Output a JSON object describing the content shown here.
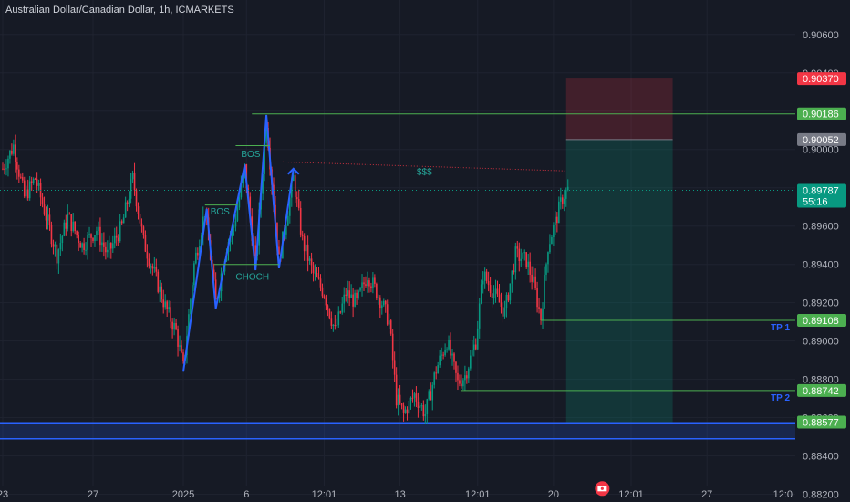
{
  "header": {
    "title": "Australian Dollar/Canadian Dollar, 1h, ICMARKETS"
  },
  "colors": {
    "background": "#161a25",
    "grid": "#1f2330",
    "up_candle": "#089981",
    "down_candle": "#f23645",
    "structure_line": "#2962ff",
    "level_line": "#4caf50",
    "stop_zone": "#f23645",
    "target_zone": "#089981",
    "axis_text": "#b2b5be",
    "liquidity_text": "#26a69a"
  },
  "chart_data": {
    "type": "candlestick",
    "symbol": "AUDCAD",
    "timeframe": "1h",
    "ylim": [
      0.8816,
      0.9078
    ],
    "y_ticks": [
      {
        "value": 0.906,
        "label": "0.90600"
      },
      {
        "value": 0.904,
        "label": "0.90400"
      },
      {
        "value": 0.902,
        "label": "0.90200"
      },
      {
        "value": 0.9,
        "label": "0.90000"
      },
      {
        "value": 0.898,
        "label": "0.89800"
      },
      {
        "value": 0.896,
        "label": "0.89600"
      },
      {
        "value": 0.894,
        "label": "0.89400"
      },
      {
        "value": 0.892,
        "label": "0.89200"
      },
      {
        "value": 0.89,
        "label": "0.89000"
      },
      {
        "value": 0.888,
        "label": "0.88800"
      },
      {
        "value": 0.886,
        "label": "0.88600"
      },
      {
        "value": 0.884,
        "label": "0.88400"
      },
      {
        "value": 0.882,
        "label": "0.88200"
      }
    ],
    "x_ticks": [
      {
        "bar": 0,
        "label": "23"
      },
      {
        "bar": 50,
        "label": "27"
      },
      {
        "bar": 100,
        "label": "2025"
      },
      {
        "bar": 135,
        "label": "6"
      },
      {
        "bar": 178,
        "label": "12:01"
      },
      {
        "bar": 220,
        "label": "13"
      },
      {
        "bar": 263,
        "label": "12:01"
      },
      {
        "bar": 305,
        "label": "20"
      },
      {
        "bar": 348,
        "label": "12:01"
      },
      {
        "bar": 390,
        "label": "27"
      },
      {
        "bar": 432,
        "label": "12:0"
      }
    ],
    "price_labels": [
      {
        "value": 0.9037,
        "label": "0.90370",
        "kind": "stop"
      },
      {
        "value": 0.90186,
        "label": "0.90186",
        "kind": "level"
      },
      {
        "value": 0.90052,
        "label": "0.90052",
        "kind": "entry"
      },
      {
        "value": 0.89787,
        "label": "0.89787",
        "kind": "current",
        "countdown": "55:16"
      },
      {
        "value": 0.89108,
        "label": "0.89108",
        "kind": "level"
      },
      {
        "value": 0.88742,
        "label": "0.88742",
        "kind": "level"
      },
      {
        "value": 0.88577,
        "label": "0.88577",
        "kind": "target"
      }
    ],
    "horizontal_levels": [
      {
        "value": 0.90186,
        "bar_start": 138
      },
      {
        "value": 0.89108,
        "bar_start": 298,
        "name": "TP 1"
      },
      {
        "value": 0.88742,
        "bar_start": 254,
        "name": "TP 2"
      }
    ],
    "support_band": {
      "top": 0.88573,
      "bottom": 0.8849
    },
    "position": {
      "side": "short",
      "bar_start": 312,
      "bar_end": 371,
      "stop": 0.9037,
      "entry": 0.90052,
      "target": 0.88577
    },
    "liquidity_line": {
      "bar_start": 155,
      "value_start": 0.89935,
      "bar_end": 312,
      "value_end": 0.89888,
      "label": "$$$"
    },
    "structure_path": [
      {
        "bar": 100,
        "value": 0.8884
      },
      {
        "bar": 113,
        "value": 0.8969
      },
      {
        "bar": 118,
        "value": 0.8917
      },
      {
        "bar": 134,
        "value": 0.8992
      },
      {
        "bar": 140,
        "value": 0.8937
      },
      {
        "bar": 146,
        "value": 0.9018
      },
      {
        "bar": 153,
        "value": 0.8938
      },
      {
        "bar": 161,
        "value": 0.899
      }
    ],
    "structure_arrow": {
      "bar": 161,
      "value": 0.899
    },
    "annotations": [
      {
        "text": "BOS",
        "bar": 115,
        "value": 0.8966,
        "line_from_bar": 112,
        "line_to_bar": 130,
        "line_value": 0.8971
      },
      {
        "text": "BOS",
        "bar": 132,
        "value": 0.8996,
        "line_from_bar": 129,
        "line_to_bar": 148,
        "line_value": 0.9002
      },
      {
        "text": "CHOCH",
        "bar": 129,
        "value": 0.8932,
        "line_from_bar": 117,
        "line_to_bar": 153,
        "line_value": 0.894
      }
    ],
    "ohlc_anchor_path": [
      {
        "bar": 0,
        "value": 0.899
      },
      {
        "bar": 6,
        "value": 0.9002
      },
      {
        "bar": 12,
        "value": 0.8975
      },
      {
        "bar": 18,
        "value": 0.8985
      },
      {
        "bar": 24,
        "value": 0.8965
      },
      {
        "bar": 30,
        "value": 0.8945
      },
      {
        "bar": 36,
        "value": 0.8965
      },
      {
        "bar": 44,
        "value": 0.895
      },
      {
        "bar": 52,
        "value": 0.8958
      },
      {
        "bar": 58,
        "value": 0.8945
      },
      {
        "bar": 66,
        "value": 0.896
      },
      {
        "bar": 72,
        "value": 0.8985
      },
      {
        "bar": 78,
        "value": 0.8952
      },
      {
        "bar": 84,
        "value": 0.8935
      },
      {
        "bar": 90,
        "value": 0.8918
      },
      {
        "bar": 96,
        "value": 0.8905
      },
      {
        "bar": 100,
        "value": 0.8886
      },
      {
        "bar": 106,
        "value": 0.894
      },
      {
        "bar": 112,
        "value": 0.8968
      },
      {
        "bar": 118,
        "value": 0.892
      },
      {
        "bar": 124,
        "value": 0.895
      },
      {
        "bar": 128,
        "value": 0.896
      },
      {
        "bar": 134,
        "value": 0.899
      },
      {
        "bar": 140,
        "value": 0.894
      },
      {
        "bar": 146,
        "value": 0.9015
      },
      {
        "bar": 153,
        "value": 0.8942
      },
      {
        "bar": 161,
        "value": 0.8985
      },
      {
        "bar": 166,
        "value": 0.8952
      },
      {
        "bar": 172,
        "value": 0.8935
      },
      {
        "bar": 178,
        "value": 0.8925
      },
      {
        "bar": 184,
        "value": 0.8905
      },
      {
        "bar": 190,
        "value": 0.8925
      },
      {
        "bar": 196,
        "value": 0.892
      },
      {
        "bar": 202,
        "value": 0.8935
      },
      {
        "bar": 210,
        "value": 0.892
      },
      {
        "bar": 214,
        "value": 0.891
      },
      {
        "bar": 218,
        "value": 0.887
      },
      {
        "bar": 222,
        "value": 0.8862
      },
      {
        "bar": 228,
        "value": 0.8872
      },
      {
        "bar": 234,
        "value": 0.8862
      },
      {
        "bar": 240,
        "value": 0.8885
      },
      {
        "bar": 246,
        "value": 0.89
      },
      {
        "bar": 252,
        "value": 0.8878
      },
      {
        "bar": 256,
        "value": 0.8882
      },
      {
        "bar": 262,
        "value": 0.89
      },
      {
        "bar": 266,
        "value": 0.8935
      },
      {
        "bar": 272,
        "value": 0.8925
      },
      {
        "bar": 278,
        "value": 0.8915
      },
      {
        "bar": 284,
        "value": 0.8945
      },
      {
        "bar": 290,
        "value": 0.8942
      },
      {
        "bar": 294,
        "value": 0.893
      },
      {
        "bar": 298,
        "value": 0.8912
      },
      {
        "bar": 302,
        "value": 0.895
      },
      {
        "bar": 306,
        "value": 0.8962
      },
      {
        "bar": 310,
        "value": 0.8975
      },
      {
        "bar": 313,
        "value": 0.8979
      }
    ],
    "notes_marker": {
      "bar": 332,
      "value": 0.8823
    }
  }
}
